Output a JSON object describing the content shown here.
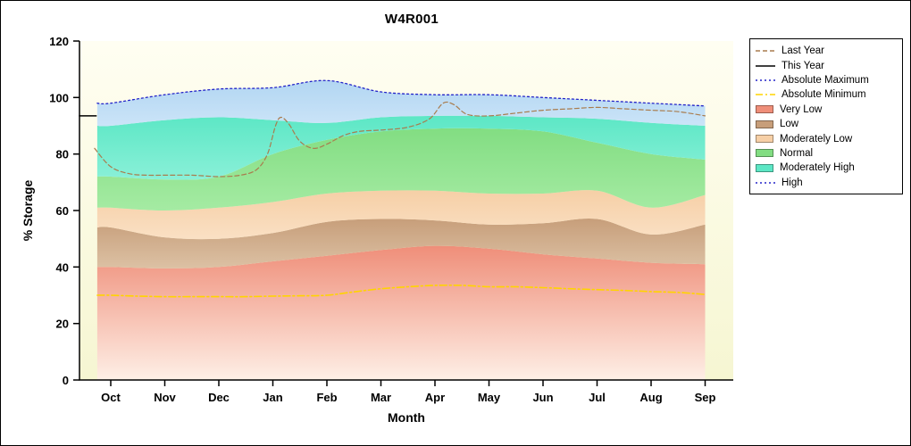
{
  "chart_data": {
    "type": "area",
    "title": "W4R001",
    "xlabel": "Month",
    "ylabel": "% Storage",
    "ylim": [
      0,
      120
    ],
    "y_ticks": [
      0,
      20,
      40,
      60,
      80,
      100,
      120
    ],
    "categories": [
      "Oct",
      "Nov",
      "Dec",
      "Jan",
      "Feb",
      "Mar",
      "Apr",
      "May",
      "Jun",
      "Jul",
      "Aug",
      "Sep"
    ],
    "plot_bg_top": "#fffef2",
    "plot_bg_bottom": "#f6f6d2",
    "bands": [
      {
        "name": "Very Low",
        "fill_top": "#ef8e79",
        "fill_bottom": "#feefe6",
        "top": [
          40,
          39.5,
          40,
          42,
          44,
          46,
          47.5,
          46.5,
          44.5,
          43,
          41.5,
          41
        ]
      },
      {
        "name": "Low",
        "fill_top": "#c79e7a",
        "fill_bottom": "#dcc1a4",
        "top": [
          54,
          50.5,
          50,
          52,
          56,
          57,
          56.5,
          55,
          55.5,
          57,
          51.5,
          55
        ]
      },
      {
        "name": "Moderately Low",
        "fill_top": "#f6cfa6",
        "fill_bottom": "#fae0c4",
        "top": [
          61,
          60,
          61,
          63,
          66,
          67,
          67,
          66,
          66,
          67,
          61,
          65.5
        ]
      },
      {
        "name": "Normal",
        "fill_top": "#82dd82",
        "fill_bottom": "#a5eba3",
        "top": [
          72,
          71,
          72,
          80,
          85,
          88,
          89,
          89,
          88,
          84,
          80,
          78
        ]
      },
      {
        "name": "Moderately High",
        "fill_top": "#5ce7c5",
        "fill_bottom": "#8af0d8",
        "top": [
          90,
          92,
          93,
          92,
          91,
          93,
          93.5,
          93.5,
          93,
          92.5,
          91,
          90
        ]
      },
      {
        "name": "High",
        "fill_top": "#b2d6f2",
        "fill_bottom": "#cbe4f8",
        "top": [
          98,
          101,
          103,
          103.5,
          106,
          102,
          101,
          101,
          100,
          99,
          98,
          97
        ]
      }
    ],
    "series": [
      {
        "name": "Absolute Minimum",
        "color": "#ffd400",
        "dash": "8,3,2,3",
        "width": 1.6,
        "points": [
          [
            -0.25,
            30
          ],
          [
            0,
            30
          ],
          [
            0.5,
            29.7
          ],
          [
            1,
            29.5
          ],
          [
            1.5,
            29.5
          ],
          [
            2,
            29.5
          ],
          [
            2.5,
            29.5
          ],
          [
            3,
            29.7
          ],
          [
            3.5,
            29.8
          ],
          [
            4,
            30
          ],
          [
            4.5,
            31.2
          ],
          [
            5,
            32.3
          ],
          [
            5.5,
            33
          ],
          [
            6,
            33.5
          ],
          [
            6.5,
            33.5
          ],
          [
            7,
            33
          ],
          [
            7.5,
            33
          ],
          [
            8,
            32.7
          ],
          [
            8.5,
            32.3
          ],
          [
            9,
            32
          ],
          [
            9.5,
            31.7
          ],
          [
            10,
            31.3
          ],
          [
            10.5,
            31
          ],
          [
            11,
            30.3
          ]
        ]
      },
      {
        "name": "Absolute Maximum",
        "color": "#2323c8",
        "dash": "2,3",
        "width": 1.3,
        "points": [
          [
            -0.25,
            98
          ],
          [
            0,
            98
          ],
          [
            1,
            101
          ],
          [
            2,
            103
          ],
          [
            3,
            103.5
          ],
          [
            4,
            106
          ],
          [
            5,
            102
          ],
          [
            6,
            101
          ],
          [
            7,
            101
          ],
          [
            8,
            100
          ],
          [
            9,
            99
          ],
          [
            10,
            98
          ],
          [
            11,
            97
          ]
        ]
      },
      {
        "name": "Last Year",
        "color": "#a97c4e",
        "dash": "5,3",
        "width": 1.2,
        "points": [
          [
            -0.3,
            82
          ],
          [
            0,
            75.5
          ],
          [
            0.35,
            73
          ],
          [
            0.7,
            72.5
          ],
          [
            1,
            72.5
          ],
          [
            1.5,
            72.5
          ],
          [
            2,
            72
          ],
          [
            2.4,
            72.5
          ],
          [
            2.7,
            74.5
          ],
          [
            2.9,
            80
          ],
          [
            3.05,
            90
          ],
          [
            3.15,
            93
          ],
          [
            3.3,
            90.5
          ],
          [
            3.5,
            84.5
          ],
          [
            3.75,
            82
          ],
          [
            4,
            83.5
          ],
          [
            4.3,
            86.5
          ],
          [
            4.6,
            88
          ],
          [
            5,
            88.5
          ],
          [
            5.5,
            89.5
          ],
          [
            5.9,
            92.5
          ],
          [
            6.15,
            98
          ],
          [
            6.35,
            97.5
          ],
          [
            6.6,
            94
          ],
          [
            7,
            93.5
          ],
          [
            7.5,
            94.5
          ],
          [
            8,
            95.5
          ],
          [
            8.5,
            96
          ],
          [
            9,
            96.5
          ],
          [
            9.5,
            96
          ],
          [
            10,
            95.5
          ],
          [
            10.5,
            95
          ],
          [
            11,
            93.5
          ]
        ]
      },
      {
        "name": "This Year",
        "color": "#000000",
        "dash": "",
        "width": 1.5,
        "points": [
          [
            -0.58,
            93.5
          ],
          [
            -0.27,
            93.5
          ]
        ]
      }
    ]
  },
  "legend": {
    "items": [
      {
        "label": "Last Year",
        "swatch": "line",
        "color": "#a97c4e",
        "dash": "5,3"
      },
      {
        "label": "This Year",
        "swatch": "line",
        "color": "#000000",
        "dash": ""
      },
      {
        "label": "Absolute Maximum",
        "swatch": "line",
        "color": "#2323c8",
        "dash": "2,3"
      },
      {
        "label": "Absolute Minimum",
        "swatch": "line",
        "color": "#ffd400",
        "dash": "8,3,2,3"
      },
      {
        "label": "Very Low",
        "swatch": "box",
        "color": "#ef8e79"
      },
      {
        "label": "Low",
        "swatch": "box",
        "color": "#c79e7a"
      },
      {
        "label": "Moderately Low",
        "swatch": "box",
        "color": "#f6cfa6"
      },
      {
        "label": "Normal",
        "swatch": "box",
        "color": "#82dd82"
      },
      {
        "label": "Moderately High",
        "swatch": "box",
        "color": "#5ce7c5"
      },
      {
        "label": "High",
        "swatch": "line",
        "color": "#2323c8",
        "dash": "2,3"
      }
    ]
  }
}
